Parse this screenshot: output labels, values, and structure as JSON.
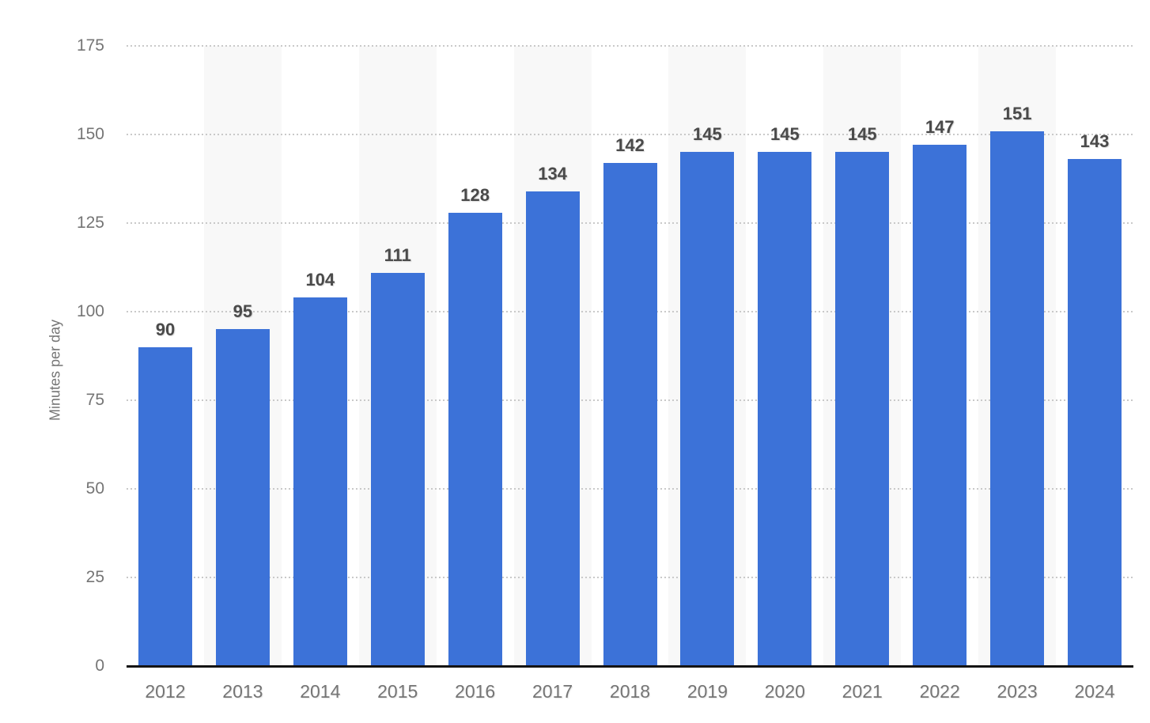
{
  "chart_data": {
    "type": "bar",
    "title": "",
    "xlabel": "",
    "ylabel": "Minutes per day",
    "categories": [
      "2012",
      "2013",
      "2014",
      "2015",
      "2016",
      "2017",
      "2018",
      "2019",
      "2020",
      "2021",
      "2022",
      "2023",
      "2024"
    ],
    "values": [
      90,
      95,
      104,
      111,
      128,
      134,
      142,
      145,
      145,
      145,
      147,
      151,
      143
    ],
    "ylim": [
      0,
      175
    ],
    "yticks": [
      0,
      25,
      50,
      75,
      100,
      125,
      150,
      175
    ],
    "grid": "horizontal-dotted",
    "legend": "none",
    "value_labels_shown": true,
    "colors": {
      "bar": "#3c72d8",
      "column_band": "#f8f8f8",
      "gridline": "#c9c9c9",
      "axis_line": "#141414",
      "tick_text": "#757575",
      "value_text": "#4a4a4a",
      "background": "#ffffff"
    }
  }
}
